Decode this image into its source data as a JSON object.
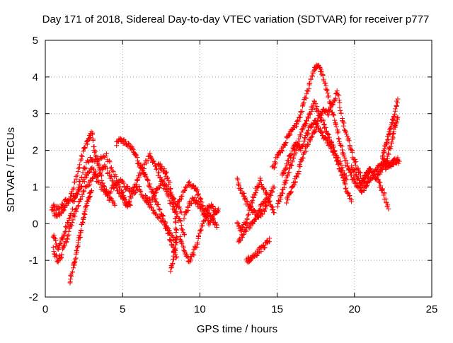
{
  "chart_data": {
    "type": "scatter",
    "title": "Day 171 of 2018, Sidereal Day-to-day VTEC variation (SDTVAR) for receiver p777",
    "xlabel": "GPS time / hours",
    "ylabel": "SDTVAR / TECUs",
    "xlim": [
      0,
      25
    ],
    "ylim": [
      -2,
      5
    ],
    "x_ticks": [
      0,
      5,
      10,
      15,
      20,
      25
    ],
    "x_tick_labels": [
      "0",
      "5",
      "10",
      "15",
      "20",
      "25"
    ],
    "y_ticks": [
      -2,
      -1,
      0,
      1,
      2,
      3,
      4,
      5
    ],
    "y_tick_labels": [
      "-2",
      "-1",
      "0",
      "1",
      "2",
      "3",
      "4",
      "5"
    ],
    "grid": true,
    "marker": "+",
    "series": [
      {
        "name": "SDTVAR",
        "color": "#ff0000",
        "tracks": [
          [
            [
              0.4,
              0.4
            ],
            [
              0.7,
              0.2
            ],
            [
              1.0,
              0.3
            ],
            [
              1.3,
              0.5
            ],
            [
              1.7,
              0.8
            ],
            [
              2.1,
              1.4
            ],
            [
              2.5,
              2.0
            ],
            [
              2.8,
              2.3
            ],
            [
              3.0,
              2.5
            ],
            [
              3.2,
              2.0
            ],
            [
              3.5,
              1.5
            ],
            [
              3.8,
              1.0
            ],
            [
              4.1,
              0.7
            ],
            [
              4.5,
              0.5
            ]
          ],
          [
            [
              0.5,
              -0.3
            ],
            [
              0.8,
              -0.7
            ],
            [
              1.0,
              -0.5
            ],
            [
              1.3,
              -0.2
            ],
            [
              1.6,
              0.2
            ],
            [
              2.0,
              0.8
            ],
            [
              2.4,
              1.4
            ],
            [
              2.9,
              1.8
            ],
            [
              3.4,
              1.7
            ],
            [
              3.9,
              1.9
            ],
            [
              4.4,
              1.4
            ],
            [
              4.9,
              0.9
            ],
            [
              5.2,
              0.6
            ],
            [
              5.5,
              0.5
            ]
          ],
          [
            [
              0.5,
              -0.7
            ],
            [
              0.8,
              -1.0
            ],
            [
              1.1,
              -0.8
            ],
            [
              1.4,
              -0.4
            ],
            [
              1.7,
              0.0
            ],
            [
              2.0,
              0.4
            ],
            [
              2.4,
              0.8
            ],
            [
              2.8,
              1.1
            ],
            [
              3.2,
              1.3
            ],
            [
              3.6,
              1.0
            ],
            [
              4.0,
              0.8
            ],
            [
              4.4,
              1.0
            ],
            [
              4.8,
              1.2
            ],
            [
              5.2,
              1.0
            ],
            [
              5.6,
              0.9
            ],
            [
              6.0,
              1.2
            ],
            [
              6.4,
              1.6
            ],
            [
              6.8,
              1.9
            ],
            [
              7.1,
              1.6
            ],
            [
              7.5,
              1.2
            ],
            [
              7.9,
              0.8
            ],
            [
              8.3,
              0.4
            ],
            [
              8.7,
              0.1
            ],
            [
              9.0,
              -0.3
            ]
          ],
          [
            [
              1.6,
              -1.6
            ],
            [
              1.8,
              -1.2
            ],
            [
              2.0,
              -0.8
            ],
            [
              2.2,
              -0.4
            ],
            [
              2.4,
              0.0
            ],
            [
              2.6,
              0.4
            ],
            [
              2.8,
              0.7
            ],
            [
              3.0,
              0.9
            ]
          ],
          [
            [
              0.5,
              0.5
            ],
            [
              0.9,
              0.4
            ],
            [
              1.3,
              0.6
            ],
            [
              1.8,
              0.7
            ],
            [
              2.2,
              0.9
            ],
            [
              2.6,
              1.3
            ],
            [
              3.0,
              1.5
            ],
            [
              3.4,
              1.3
            ],
            [
              3.8,
              1.6
            ],
            [
              4.2,
              1.3
            ],
            [
              4.6,
              1.0
            ],
            [
              5.0,
              0.7
            ],
            [
              5.3,
              0.5
            ],
            [
              5.6,
              0.8
            ],
            [
              6.0,
              1.0
            ],
            [
              6.4,
              0.7
            ],
            [
              6.8,
              0.6
            ],
            [
              7.2,
              0.9
            ],
            [
              7.6,
              1.2
            ],
            [
              8.0,
              0.9
            ],
            [
              8.4,
              0.6
            ],
            [
              8.8,
              0.3
            ]
          ],
          [
            [
              4.6,
              2.2
            ],
            [
              4.9,
              2.3
            ],
            [
              5.2,
              2.2
            ],
            [
              5.5,
              2.1
            ],
            [
              5.8,
              1.9
            ],
            [
              6.1,
              1.6
            ],
            [
              6.4,
              1.4
            ],
            [
              6.7,
              1.1
            ],
            [
              7.0,
              0.8
            ],
            [
              7.3,
              0.5
            ],
            [
              7.6,
              0.2
            ],
            [
              7.9,
              -0.2
            ],
            [
              8.2,
              -0.6
            ],
            [
              8.5,
              -0.9
            ]
          ],
          [
            [
              7.3,
              1.6
            ],
            [
              7.6,
              1.5
            ],
            [
              7.9,
              1.3
            ],
            [
              8.2,
              0.8
            ],
            [
              8.4,
              0.2
            ],
            [
              8.5,
              -0.4
            ],
            [
              8.3,
              -0.9
            ],
            [
              8.1,
              -1.3
            ]
          ],
          [
            [
              6.5,
              0.7
            ],
            [
              6.9,
              0.4
            ],
            [
              7.3,
              0.2
            ],
            [
              7.7,
              0.0
            ],
            [
              8.1,
              -0.3
            ],
            [
              8.5,
              -0.5
            ]
          ],
          [
            [
              8.5,
              0.5
            ],
            [
              8.9,
              0.8
            ],
            [
              9.3,
              1.1
            ],
            [
              9.7,
              1.0
            ],
            [
              10.0,
              0.7
            ],
            [
              10.3,
              0.3
            ],
            [
              10.6,
              0.0
            ],
            [
              10.9,
              0.2
            ],
            [
              11.2,
              0.4
            ]
          ],
          [
            [
              8.7,
              -0.4
            ],
            [
              9.0,
              -0.7
            ],
            [
              9.3,
              -1.0
            ],
            [
              9.6,
              -0.8
            ],
            [
              9.9,
              -0.4
            ],
            [
              10.2,
              0.0
            ],
            [
              10.5,
              0.3
            ],
            [
              10.8,
              0.1
            ],
            [
              11.1,
              -0.1
            ]
          ],
          [
            [
              9.0,
              0.2
            ],
            [
              9.3,
              0.5
            ],
            [
              9.6,
              0.7
            ],
            [
              9.9,
              0.5
            ],
            [
              10.2,
              0.3
            ],
            [
              10.5,
              0.4
            ],
            [
              10.8,
              0.5
            ],
            [
              11.1,
              0.3
            ]
          ],
          [
            [
              12.4,
              1.2
            ],
            [
              12.7,
              0.9
            ],
            [
              13.0,
              0.6
            ],
            [
              13.3,
              0.4
            ],
            [
              13.6,
              0.3
            ],
            [
              13.9,
              0.2
            ],
            [
              14.2,
              0.4
            ],
            [
              14.5,
              0.7
            ],
            [
              14.8,
              1.0
            ]
          ],
          [
            [
              12.4,
              0.0
            ],
            [
              12.7,
              -0.2
            ],
            [
              13.0,
              0.1
            ],
            [
              13.3,
              0.5
            ],
            [
              13.6,
              0.9
            ],
            [
              13.9,
              1.2
            ],
            [
              14.2,
              0.9
            ],
            [
              14.5,
              0.6
            ],
            [
              14.8,
              0.3
            ]
          ],
          [
            [
              12.5,
              -0.5
            ],
            [
              12.8,
              -0.3
            ],
            [
              13.1,
              -0.1
            ],
            [
              13.4,
              0.0
            ],
            [
              13.7,
              0.2
            ],
            [
              14.0,
              0.5
            ],
            [
              14.3,
              0.7
            ]
          ],
          [
            [
              13.0,
              -1.0
            ],
            [
              13.3,
              -0.95
            ],
            [
              13.6,
              -0.85
            ],
            [
              13.9,
              -0.7
            ],
            [
              14.2,
              -0.6
            ],
            [
              14.5,
              -0.4
            ]
          ],
          [
            [
              14.7,
              1.5
            ],
            [
              15.0,
              1.8
            ],
            [
              15.3,
              2.0
            ],
            [
              15.6,
              2.3
            ],
            [
              15.9,
              2.5
            ],
            [
              16.2,
              2.7
            ],
            [
              16.5,
              3.0
            ],
            [
              16.8,
              3.4
            ],
            [
              17.1,
              3.8
            ],
            [
              17.4,
              4.2
            ],
            [
              17.7,
              4.3
            ],
            [
              18.0,
              4.0
            ],
            [
              18.3,
              3.5
            ],
            [
              18.6,
              3.0
            ],
            [
              18.9,
              2.5
            ],
            [
              19.2,
              2.0
            ],
            [
              19.5,
              1.6
            ],
            [
              19.8,
              1.3
            ],
            [
              20.1,
              1.1
            ],
            [
              20.4,
              1.0
            ],
            [
              20.7,
              1.2
            ],
            [
              21.0,
              1.4
            ]
          ],
          [
            [
              15.0,
              0.5
            ],
            [
              15.3,
              0.8
            ],
            [
              15.6,
              1.2
            ],
            [
              15.9,
              1.6
            ],
            [
              16.2,
              2.0
            ],
            [
              16.5,
              2.4
            ],
            [
              16.8,
              2.7
            ],
            [
              17.1,
              3.0
            ],
            [
              17.4,
              3.3
            ],
            [
              17.7,
              3.0
            ],
            [
              18.0,
              2.7
            ],
            [
              18.3,
              2.4
            ],
            [
              18.6,
              2.1
            ],
            [
              18.9,
              1.8
            ],
            [
              19.2,
              1.5
            ],
            [
              19.5,
              1.2
            ]
          ],
          [
            [
              15.3,
              1.3
            ],
            [
              15.6,
              1.6
            ],
            [
              15.9,
              1.9
            ],
            [
              16.2,
              2.2
            ],
            [
              16.5,
              2.0
            ],
            [
              16.8,
              2.3
            ],
            [
              17.1,
              2.6
            ],
            [
              17.4,
              2.8
            ],
            [
              17.7,
              2.6
            ],
            [
              18.0,
              2.4
            ],
            [
              18.3,
              2.2
            ],
            [
              18.6,
              2.0
            ],
            [
              18.9,
              1.7
            ],
            [
              19.2,
              1.3
            ],
            [
              19.5,
              0.9
            ],
            [
              19.8,
              0.6
            ]
          ],
          [
            [
              15.6,
              0.6
            ],
            [
              15.9,
              0.9
            ],
            [
              16.2,
              1.2
            ],
            [
              16.5,
              1.6
            ],
            [
              16.8,
              2.0
            ],
            [
              17.1,
              2.3
            ],
            [
              17.4,
              2.5
            ],
            [
              17.7,
              2.9
            ],
            [
              18.0,
              3.1
            ],
            [
              18.3,
              3.0
            ],
            [
              18.6,
              3.3
            ],
            [
              18.9,
              3.6
            ],
            [
              19.2,
              2.9
            ],
            [
              19.5,
              2.4
            ],
            [
              19.8,
              2.0
            ],
            [
              20.1,
              1.6
            ],
            [
              20.4,
              1.3
            ]
          ],
          [
            [
              19.8,
              1.6
            ],
            [
              20.1,
              1.3
            ],
            [
              20.4,
              1.1
            ],
            [
              20.7,
              1.3
            ],
            [
              21.0,
              1.5
            ],
            [
              21.3,
              1.3
            ],
            [
              21.6,
              1.1
            ],
            [
              21.9,
              0.8
            ],
            [
              22.2,
              0.4
            ]
          ],
          [
            [
              20.4,
              0.9
            ],
            [
              20.7,
              1.0
            ],
            [
              21.0,
              1.2
            ],
            [
              21.3,
              1.4
            ],
            [
              21.6,
              1.6
            ],
            [
              21.9,
              1.7
            ],
            [
              22.2,
              1.6
            ],
            [
              22.5,
              1.7
            ],
            [
              22.8,
              1.8
            ]
          ],
          [
            [
              21.8,
              1.8
            ],
            [
              22.0,
              2.1
            ],
            [
              22.2,
              2.4
            ],
            [
              22.4,
              2.7
            ],
            [
              22.6,
              3.0
            ],
            [
              22.8,
              3.4
            ]
          ],
          [
            [
              21.5,
              1.3
            ],
            [
              21.8,
              1.5
            ],
            [
              22.1,
              1.8
            ],
            [
              22.4,
              2.2
            ],
            [
              22.6,
              2.6
            ],
            [
              22.8,
              2.9
            ]
          ],
          [
            [
              22.0,
              1.5
            ],
            [
              22.3,
              1.6
            ],
            [
              22.6,
              1.7
            ],
            [
              22.9,
              1.7
            ]
          ]
        ]
      }
    ]
  }
}
